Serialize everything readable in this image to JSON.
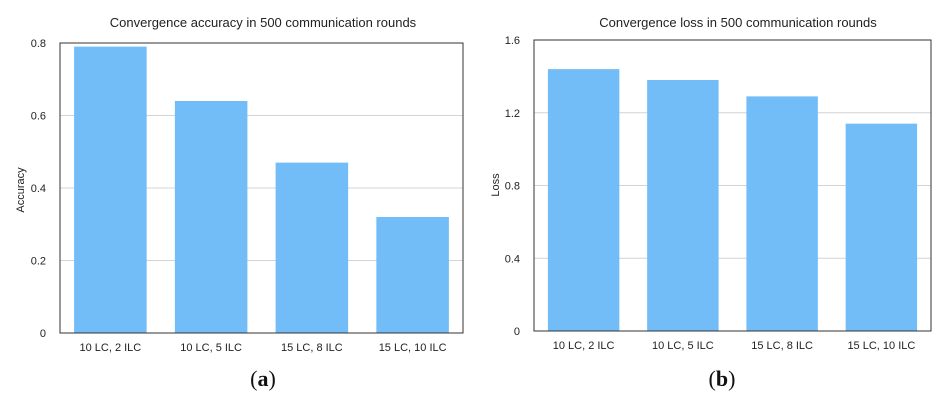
{
  "chart_data": [
    {
      "type": "bar",
      "title": "Convergence accuracy in 500 communication rounds",
      "xlabel": "",
      "ylabel": "Accuracy",
      "categories": [
        "10 LC, 2 ILC",
        "10 LC, 5 ILC",
        "15 LC, 8 ILC",
        "15 LC, 10 ILC"
      ],
      "values": [
        0.79,
        0.64,
        0.47,
        0.32
      ],
      "ylim": [
        0,
        0.8
      ],
      "yticks": [
        "0",
        "0.2",
        "0.4",
        "0.6",
        "0.8"
      ],
      "grid": true,
      "color": "#72bdf8",
      "panel_label": "a"
    },
    {
      "type": "bar",
      "title": "Convergence loss in 500 communication rounds",
      "xlabel": "",
      "ylabel": "Loss",
      "categories": [
        "10 LC, 2 ILC",
        "10 LC, 5 ILC",
        "15 LC, 8 ILC",
        "15 LC, 10 ILC"
      ],
      "values": [
        1.44,
        1.38,
        1.29,
        1.14
      ],
      "ylim": [
        0,
        1.6
      ],
      "yticks": [
        "0",
        "0.4",
        "0.8",
        "1.2",
        "1.6"
      ],
      "grid": true,
      "color": "#72bdf8",
      "panel_label": "b"
    }
  ]
}
